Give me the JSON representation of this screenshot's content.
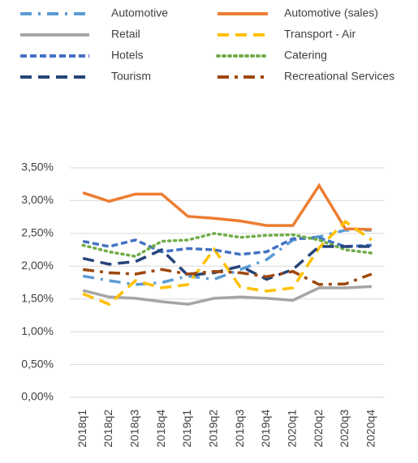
{
  "chart_data": {
    "type": "line",
    "categories": [
      "2018q1",
      "2018q2",
      "2018q3",
      "2018q4",
      "2019q1",
      "2019q2",
      "2019q3",
      "2019q4",
      "2020q1",
      "2020q2",
      "2020q3",
      "2020q4"
    ],
    "series": [
      {
        "name": "Automotive",
        "color": "#5b9bd5",
        "dash": "dashdot",
        "values": [
          1.85,
          1.78,
          1.72,
          1.75,
          1.85,
          1.8,
          1.95,
          2.1,
          2.4,
          2.45,
          2.55,
          2.55
        ]
      },
      {
        "name": "Automotive (sales)",
        "color": "#ed7d31",
        "dash": "solid",
        "values": [
          3.12,
          2.99,
          3.1,
          3.1,
          2.76,
          2.73,
          2.69,
          2.62,
          2.62,
          3.23,
          2.57,
          2.56
        ]
      },
      {
        "name": "Retail",
        "color": "#a5a5a5",
        "dash": "solid",
        "values": [
          1.63,
          1.53,
          1.51,
          1.46,
          1.42,
          1.51,
          1.53,
          1.51,
          1.48,
          1.67,
          1.67,
          1.69
        ]
      },
      {
        "name": "Transport - Air",
        "color": "#ffc000",
        "dash": "longdash",
        "values": [
          1.58,
          1.42,
          1.78,
          1.67,
          1.72,
          2.26,
          1.68,
          1.62,
          1.67,
          2.28,
          2.68,
          2.4
        ]
      },
      {
        "name": "Hotels",
        "color": "#4472c4",
        "dash": "dash",
        "values": [
          2.38,
          2.3,
          2.4,
          2.22,
          2.27,
          2.25,
          2.18,
          2.22,
          2.42,
          2.43,
          2.3,
          2.32
        ]
      },
      {
        "name": "Catering",
        "color": "#70ad47",
        "dash": "dot",
        "values": [
          2.32,
          2.22,
          2.15,
          2.38,
          2.4,
          2.5,
          2.44,
          2.47,
          2.48,
          2.4,
          2.25,
          2.2
        ]
      },
      {
        "name": "Tourism",
        "color": "#264478",
        "dash": "longdash",
        "values": [
          2.12,
          2.03,
          2.07,
          2.25,
          1.86,
          1.9,
          2.0,
          1.8,
          1.95,
          2.3,
          2.3,
          2.3
        ]
      },
      {
        "name": "Recreational Services",
        "color": "#9e480e",
        "dash": "longdashdot",
        "values": [
          1.95,
          1.9,
          1.88,
          1.95,
          1.88,
          1.92,
          1.9,
          1.84,
          1.92,
          1.72,
          1.73,
          1.88
        ]
      }
    ],
    "ylim": [
      0,
      3.5
    ],
    "yticks": [
      {
        "value": 0,
        "label": "0,00%"
      },
      {
        "value": 0.5,
        "label": "0,50%"
      },
      {
        "value": 1,
        "label": "1,00%"
      },
      {
        "value": 1.5,
        "label": "1,50%"
      },
      {
        "value": 2,
        "label": "2,00%"
      },
      {
        "value": 2.5,
        "label": "2,50%"
      },
      {
        "value": 3,
        "label": "3,00%"
      },
      {
        "value": 3.5,
        "label": "3,50%"
      }
    ],
    "grid": true
  }
}
